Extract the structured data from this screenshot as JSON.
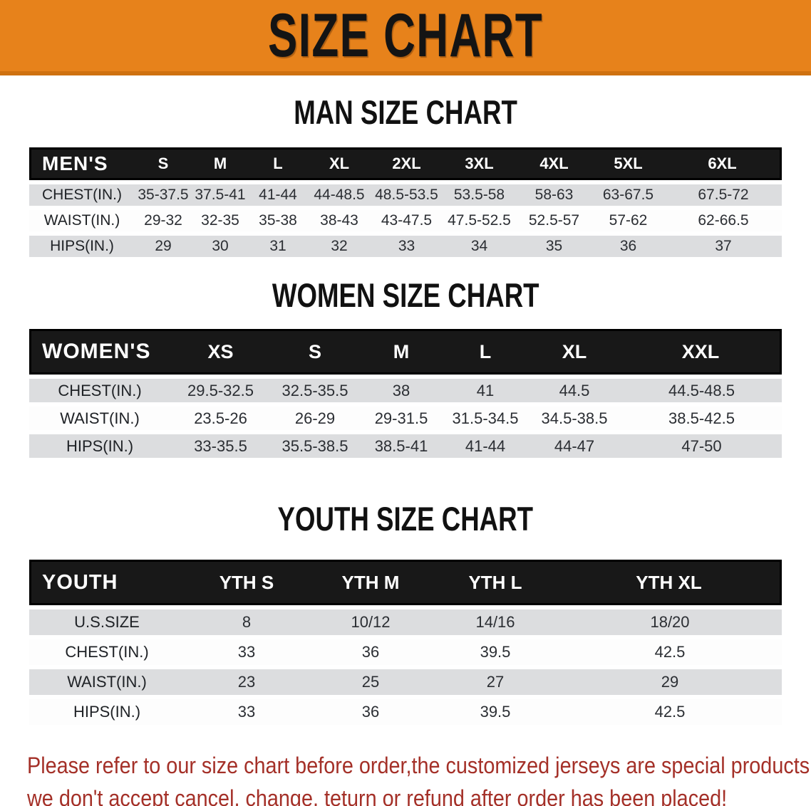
{
  "banner": {
    "title": "SIZE CHART"
  },
  "colors": {
    "banner_bg": "#e7821b",
    "banner_edge": "#cf7110",
    "table_header_bg": "#181818",
    "row_gray": "#dcdddf",
    "row_white": "#fdfdfd",
    "footer_red": "#a43028"
  },
  "sections": [
    {
      "id": "men",
      "heading": "MAN SIZE CHART",
      "table": {
        "label": "MEN'S",
        "columns": [
          "S",
          "M",
          "L",
          "XL",
          "2XL",
          "3XL",
          "4XL",
          "5XL",
          "6XL"
        ],
        "rows": [
          {
            "label": "CHEST(IN.)",
            "values": [
              "35-37.5",
              "37.5-41",
              "41-44",
              "44-48.5",
              "48.5-53.5",
              "53.5-58",
              "58-63",
              "63-67.5",
              "67.5-72"
            ]
          },
          {
            "label": "WAIST(IN.)",
            "values": [
              "29-32",
              "32-35",
              "35-38",
              "38-43",
              "43-47.5",
              "47.5-52.5",
              "52.5-57",
              "57-62",
              "62-66.5"
            ]
          },
          {
            "label": "HIPS(IN.)",
            "values": [
              "29",
              "30",
              "31",
              "32",
              "33",
              "34",
              "35",
              "36",
              "37"
            ]
          }
        ]
      }
    },
    {
      "id": "women",
      "heading": "WOMEN SIZE CHART",
      "table": {
        "label": "WOMEN'S",
        "columns": [
          "XS",
          "S",
          "M",
          "L",
          "XL",
          "XXL"
        ],
        "rows": [
          {
            "label": "CHEST(IN.)",
            "values": [
              "29.5-32.5",
              "32.5-35.5",
              "38",
              "41",
              "44.5",
              "44.5-48.5"
            ]
          },
          {
            "label": "WAIST(IN.)",
            "values": [
              "23.5-26",
              "26-29",
              "29-31.5",
              "31.5-34.5",
              "34.5-38.5",
              "38.5-42.5"
            ]
          },
          {
            "label": "HIPS(IN.)",
            "values": [
              "33-35.5",
              "35.5-38.5",
              "38.5-41",
              "41-44",
              "44-47",
              "47-50"
            ]
          }
        ]
      }
    },
    {
      "id": "youth",
      "heading": "YOUTH SIZE CHART",
      "table": {
        "label": "YOUTH",
        "columns": [
          "YTH S",
          "YTH M",
          "YTH L",
          "YTH XL"
        ],
        "rows": [
          {
            "label": "U.S.SIZE",
            "values": [
              "8",
              "10/12",
              "14/16",
              "18/20"
            ]
          },
          {
            "label": "CHEST(IN.)",
            "values": [
              "33",
              "36",
              "39.5",
              "42.5"
            ]
          },
          {
            "label": "WAIST(IN.)",
            "values": [
              "23",
              "25",
              "27",
              "29"
            ]
          },
          {
            "label": "HIPS(IN.)",
            "values": [
              "33",
              "36",
              "39.5",
              "42.5"
            ]
          }
        ]
      }
    }
  ],
  "footer": {
    "line1": "Please refer to our size chart before order,the customized jerseys are special products,",
    "line2": "we don't accept cancel, change, teturn or refund after order has been placed!"
  }
}
